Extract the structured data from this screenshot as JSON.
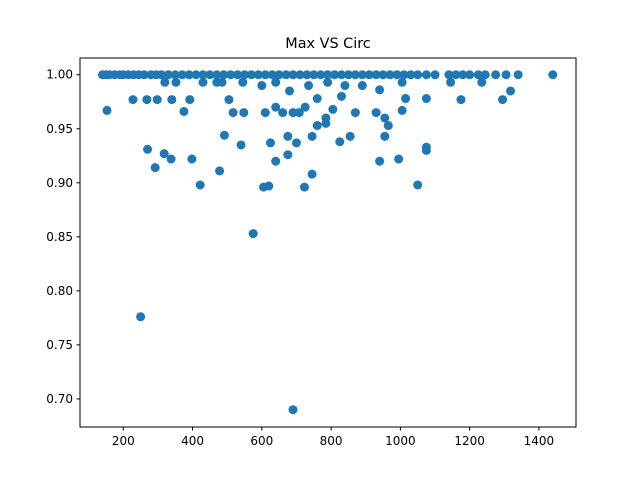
{
  "chart_data": {
    "type": "scatter",
    "title": "Max VS Circ",
    "xlabel": "",
    "ylabel": "",
    "xlim": [
      75,
      1507
    ],
    "ylim": [
      0.674,
      1.0155
    ],
    "x_ticks": [
      200,
      400,
      600,
      800,
      1000,
      1200,
      1400
    ],
    "x_tick_labels": [
      "200",
      "400",
      "600",
      "800",
      "1000",
      "1200",
      "1400"
    ],
    "y_ticks": [
      0.7,
      0.75,
      0.8,
      0.85,
      0.9,
      0.95,
      1.0
    ],
    "y_tick_labels": [
      "0.70",
      "0.75",
      "0.80",
      "0.85",
      "0.90",
      "0.95",
      "1.00"
    ],
    "grid": false,
    "legend": "none",
    "marker_color": "#1f77b4",
    "points": [
      {
        "x": 140,
        "y": 1.0
      },
      {
        "x": 150,
        "y": 1.0
      },
      {
        "x": 160,
        "y": 1.0
      },
      {
        "x": 175,
        "y": 1.0
      },
      {
        "x": 190,
        "y": 1.0
      },
      {
        "x": 200,
        "y": 1.0
      },
      {
        "x": 215,
        "y": 1.0
      },
      {
        "x": 230,
        "y": 1.0
      },
      {
        "x": 245,
        "y": 1.0
      },
      {
        "x": 260,
        "y": 1.0
      },
      {
        "x": 280,
        "y": 1.0
      },
      {
        "x": 295,
        "y": 1.0
      },
      {
        "x": 310,
        "y": 1.0
      },
      {
        "x": 330,
        "y": 1.0
      },
      {
        "x": 350,
        "y": 1.0
      },
      {
        "x": 370,
        "y": 1.0
      },
      {
        "x": 390,
        "y": 1.0
      },
      {
        "x": 410,
        "y": 1.0
      },
      {
        "x": 430,
        "y": 1.0
      },
      {
        "x": 450,
        "y": 1.0
      },
      {
        "x": 470,
        "y": 1.0
      },
      {
        "x": 490,
        "y": 1.0
      },
      {
        "x": 510,
        "y": 1.0
      },
      {
        "x": 530,
        "y": 1.0
      },
      {
        "x": 550,
        "y": 1.0
      },
      {
        "x": 570,
        "y": 1.0
      },
      {
        "x": 590,
        "y": 1.0
      },
      {
        "x": 610,
        "y": 1.0
      },
      {
        "x": 630,
        "y": 1.0
      },
      {
        "x": 650,
        "y": 1.0
      },
      {
        "x": 670,
        "y": 1.0
      },
      {
        "x": 690,
        "y": 1.0
      },
      {
        "x": 710,
        "y": 1.0
      },
      {
        "x": 730,
        "y": 1.0
      },
      {
        "x": 750,
        "y": 1.0
      },
      {
        "x": 770,
        "y": 1.0
      },
      {
        "x": 790,
        "y": 1.0
      },
      {
        "x": 810,
        "y": 1.0
      },
      {
        "x": 830,
        "y": 1.0
      },
      {
        "x": 850,
        "y": 1.0
      },
      {
        "x": 870,
        "y": 1.0
      },
      {
        "x": 890,
        "y": 1.0
      },
      {
        "x": 910,
        "y": 1.0
      },
      {
        "x": 930,
        "y": 1.0
      },
      {
        "x": 950,
        "y": 1.0
      },
      {
        "x": 970,
        "y": 1.0
      },
      {
        "x": 990,
        "y": 1.0
      },
      {
        "x": 1010,
        "y": 1.0
      },
      {
        "x": 1030,
        "y": 1.0
      },
      {
        "x": 1050,
        "y": 1.0
      },
      {
        "x": 1075,
        "y": 1.0
      },
      {
        "x": 1100,
        "y": 1.0
      },
      {
        "x": 1140,
        "y": 1.0
      },
      {
        "x": 1160,
        "y": 1.0
      },
      {
        "x": 1180,
        "y": 1.0
      },
      {
        "x": 1200,
        "y": 1.0
      },
      {
        "x": 1225,
        "y": 1.0
      },
      {
        "x": 1245,
        "y": 1.0
      },
      {
        "x": 1275,
        "y": 1.0
      },
      {
        "x": 1305,
        "y": 1.0
      },
      {
        "x": 1340,
        "y": 1.0
      },
      {
        "x": 1440,
        "y": 1.0
      },
      {
        "x": 153,
        "y": 0.967
      },
      {
        "x": 228,
        "y": 0.977
      },
      {
        "x": 268,
        "y": 0.977
      },
      {
        "x": 298,
        "y": 0.977
      },
      {
        "x": 340,
        "y": 0.977
      },
      {
        "x": 375,
        "y": 0.966
      },
      {
        "x": 392,
        "y": 0.977
      },
      {
        "x": 505,
        "y": 0.977
      },
      {
        "x": 517,
        "y": 0.965
      },
      {
        "x": 548,
        "y": 0.965
      },
      {
        "x": 610,
        "y": 0.965
      },
      {
        "x": 640,
        "y": 0.97
      },
      {
        "x": 660,
        "y": 0.965
      },
      {
        "x": 690,
        "y": 0.965
      },
      {
        "x": 708,
        "y": 0.965
      },
      {
        "x": 725,
        "y": 0.97
      },
      {
        "x": 760,
        "y": 0.978
      },
      {
        "x": 785,
        "y": 0.96
      },
      {
        "x": 805,
        "y": 0.968
      },
      {
        "x": 830,
        "y": 0.98
      },
      {
        "x": 870,
        "y": 0.965
      },
      {
        "x": 930,
        "y": 0.965
      },
      {
        "x": 955,
        "y": 0.96
      },
      {
        "x": 965,
        "y": 0.953
      },
      {
        "x": 1005,
        "y": 0.967
      },
      {
        "x": 1015,
        "y": 0.978
      },
      {
        "x": 1075,
        "y": 0.978
      },
      {
        "x": 1175,
        "y": 0.977
      },
      {
        "x": 1295,
        "y": 0.977
      },
      {
        "x": 1318,
        "y": 0.985
      },
      {
        "x": 320,
        "y": 0.993
      },
      {
        "x": 352,
        "y": 0.993
      },
      {
        "x": 430,
        "y": 0.993
      },
      {
        "x": 470,
        "y": 0.993
      },
      {
        "x": 485,
        "y": 0.993
      },
      {
        "x": 545,
        "y": 0.993
      },
      {
        "x": 600,
        "y": 0.99
      },
      {
        "x": 640,
        "y": 0.993
      },
      {
        "x": 680,
        "y": 0.985
      },
      {
        "x": 735,
        "y": 0.99
      },
      {
        "x": 790,
        "y": 0.993
      },
      {
        "x": 840,
        "y": 0.99
      },
      {
        "x": 890,
        "y": 0.99
      },
      {
        "x": 940,
        "y": 0.986
      },
      {
        "x": 1005,
        "y": 0.993
      },
      {
        "x": 1145,
        "y": 0.993
      },
      {
        "x": 1235,
        "y": 0.993
      },
      {
        "x": 270,
        "y": 0.931
      },
      {
        "x": 318,
        "y": 0.927
      },
      {
        "x": 338,
        "y": 0.922
      },
      {
        "x": 398,
        "y": 0.922
      },
      {
        "x": 292,
        "y": 0.914
      },
      {
        "x": 492,
        "y": 0.944
      },
      {
        "x": 540,
        "y": 0.935
      },
      {
        "x": 625,
        "y": 0.937
      },
      {
        "x": 640,
        "y": 0.92
      },
      {
        "x": 675,
        "y": 0.943
      },
      {
        "x": 675,
        "y": 0.926
      },
      {
        "x": 700,
        "y": 0.937
      },
      {
        "x": 745,
        "y": 0.943
      },
      {
        "x": 760,
        "y": 0.953
      },
      {
        "x": 785,
        "y": 0.955
      },
      {
        "x": 855,
        "y": 0.943
      },
      {
        "x": 940,
        "y": 0.92
      },
      {
        "x": 955,
        "y": 0.943
      },
      {
        "x": 995,
        "y": 0.922
      },
      {
        "x": 1075,
        "y": 0.93
      },
      {
        "x": 1075,
        "y": 0.933
      },
      {
        "x": 825,
        "y": 0.938
      },
      {
        "x": 422,
        "y": 0.898
      },
      {
        "x": 478,
        "y": 0.911
      },
      {
        "x": 605,
        "y": 0.896
      },
      {
        "x": 620,
        "y": 0.897
      },
      {
        "x": 723,
        "y": 0.896
      },
      {
        "x": 745,
        "y": 0.908
      },
      {
        "x": 1050,
        "y": 0.898
      },
      {
        "x": 575,
        "y": 0.853
      },
      {
        "x": 250,
        "y": 0.776
      },
      {
        "x": 690,
        "y": 0.69
      }
    ]
  }
}
